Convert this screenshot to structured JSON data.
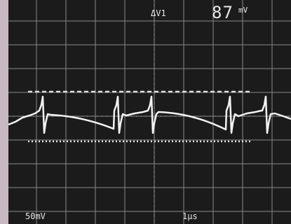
{
  "readout": {
    "delta_label": "ΔV1",
    "delta_value": "87",
    "delta_unit": "mV"
  },
  "scale": {
    "volts_per_div": "50mV",
    "time_per_div": "1μs"
  },
  "colors": {
    "screen": "#1b1b1b",
    "grid": "#8a8a8a",
    "trace": "#f2f2f2",
    "cursor": "#e0e0e0",
    "frame": "#c6b9c4"
  }
}
